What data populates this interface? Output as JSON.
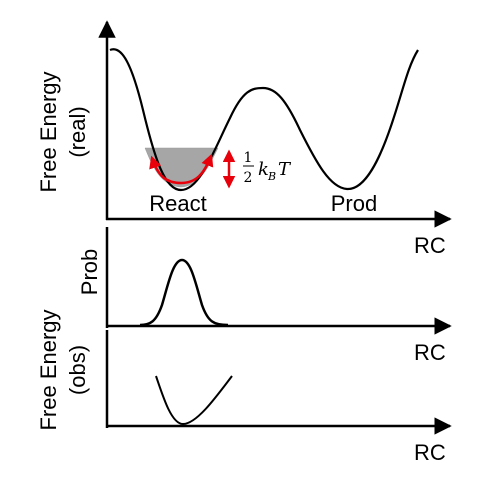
{
  "top_panel": {
    "ylabel_line1": "Free Energy",
    "ylabel_line2": "(real)",
    "xlabel": "RC",
    "well_left_label": "React",
    "well_right_label": "Prod",
    "thermal_annotation": {
      "fraction_num": "1",
      "fraction_den": "2",
      "k": "k",
      "sub": "B",
      "T": "T"
    },
    "fill_color": "#a6a6a6",
    "arrow_color": "#e8000b"
  },
  "middle_panel": {
    "ylabel": "Prob",
    "xlabel": "RC"
  },
  "bottom_panel": {
    "ylabel_line1": "Free Energy",
    "ylabel_line2": "(obs)",
    "xlabel": "RC"
  }
}
